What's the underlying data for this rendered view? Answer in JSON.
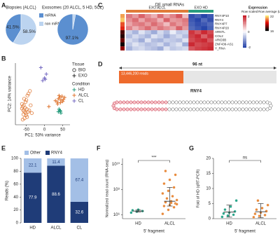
{
  "panel_labels": [
    "A",
    "B",
    "C",
    "D",
    "E",
    "F",
    "G"
  ],
  "coverage": {
    "length_label": "96 nt",
    "reads_label": "13,446,200 reads",
    "name": "RNY4"
  },
  "chart_data": [
    {
      "type": "pie",
      "title": "Biopsies (ALCL)",
      "categories": [
        "miRNA",
        "non miRNA"
      ],
      "values": [
        41.5,
        58.5
      ],
      "value_labels": [
        "41.5%",
        "58.5%"
      ],
      "colors": [
        "#5b8fd0",
        "#bcd4f0"
      ]
    },
    {
      "type": "pie",
      "title": "Exosomes (20 ALCL, 5 HD, 5CL)",
      "values": [
        97.1,
        2.9
      ],
      "value_labels": [
        "97.1%",
        null
      ],
      "colors": [
        "#5b8fd0",
        "#bcd4f0"
      ]
    },
    {
      "type": "scatter",
      "xlabel": "PC1: 53% variance",
      "ylabel": "PC2: 14% variance",
      "xlim": [
        -80,
        70
      ],
      "ylim": [
        -40,
        55
      ],
      "xticks": [
        -50,
        0,
        50
      ],
      "tissue_legend": {
        "title": "Tissue",
        "items": [
          {
            "name": "BIO",
            "marker": "circle"
          },
          {
            "name": "EXO",
            "marker": "plus"
          }
        ]
      },
      "condition_legend": {
        "title": "Condition",
        "items": [
          {
            "name": "HD",
            "color": "#2a9d7f"
          },
          {
            "name": "ALCL",
            "color": "#e07b39"
          },
          {
            "name": "CL",
            "color": "#7a6fc4"
          }
        ]
      },
      "groups": [
        {
          "tissue": 0,
          "condition": 1,
          "x": [
            -62,
            -58,
            -55,
            -52,
            -50,
            -48,
            -60,
            -57,
            -53,
            -49,
            -45,
            -55,
            -60,
            -58,
            -52,
            -47,
            -44,
            -40,
            -62,
            -56,
            -50,
            -42,
            -38,
            -35
          ],
          "y": [
            -15,
            -18,
            -20,
            -22,
            -25,
            -28,
            -12,
            -10,
            -14,
            -16,
            -20,
            -30,
            -32,
            -24,
            -5,
            5,
            8,
            12,
            -8,
            0,
            -2,
            -18,
            -10,
            -22
          ]
        },
        {
          "tissue": 1,
          "condition": 1,
          "x": [
            30,
            35,
            38,
            42,
            45,
            48,
            50,
            52,
            40,
            44,
            12,
            55,
            36
          ],
          "y": [
            -3,
            -5,
            0,
            2,
            -2,
            4,
            -4,
            -1,
            5,
            -6,
            -12,
            2,
            -8
          ]
        },
        {
          "tissue": 1,
          "condition": 0,
          "x": [
            38,
            42,
            45,
            40,
            44
          ],
          "y": [
            -20,
            -18,
            -22,
            -16,
            -19
          ]
        },
        {
          "tissue": 1,
          "condition": 2,
          "x": [
            -10,
            5,
            0,
            -5,
            2
          ],
          "y": [
            48,
            38,
            32,
            28,
            30
          ]
        }
      ]
    },
    {
      "type": "heatmap",
      "title": "DE small RNAs",
      "legend_title": "Expression",
      "scale_label": "Row scaled",
      "avg_label": "Row average (Log2)",
      "scale_ticks": [
        2,
        0,
        -2
      ],
      "avg_ticks": [
        22,
        16
      ],
      "groups": [
        {
          "name": "EXO ALCL",
          "color": "#e07b39",
          "columns": 10
        },
        {
          "name": "EXO HD",
          "color": "#2a9d7f",
          "columns": 4
        }
      ],
      "rows": [
        "RNY4P10",
        "RNY4",
        "RNY4P7",
        "RNY4P20",
        "ARNTL",
        "COL2",
        "ARID3B",
        "ZNF436-AS1",
        "Y_RNA"
      ],
      "row_average": [
        21,
        21.5,
        20,
        19.5,
        17,
        16.5,
        17.5,
        16.2,
        18
      ],
      "values": [
        [
          1.2,
          0.9,
          1.4,
          1.0,
          0.7,
          1.3,
          0.8,
          1.1,
          1.5,
          0.6,
          -1.9,
          -1.7,
          -2.0,
          -1.8
        ],
        [
          1.0,
          1.3,
          0.8,
          1.2,
          1.1,
          0.7,
          1.4,
          0.9,
          1.0,
          1.2,
          -1.8,
          -2.0,
          -1.6,
          -1.9
        ],
        [
          0.8,
          1.1,
          1.2,
          0.9,
          1.3,
          1.0,
          0.6,
          1.2,
          0.9,
          1.1,
          -1.7,
          -1.9,
          -1.8,
          -1.6
        ],
        [
          1.1,
          0.7,
          1.0,
          1.3,
          0.9,
          1.2,
          1.0,
          0.8,
          1.4,
          0.9,
          -1.6,
          -1.8,
          -2.0,
          -1.7
        ],
        [
          -0.5,
          -0.8,
          -0.3,
          -0.6,
          -0.9,
          -0.4,
          -0.7,
          -0.2,
          -0.6,
          -0.5,
          1.8,
          1.5,
          1.9,
          1.6
        ],
        [
          -0.7,
          -0.4,
          -0.6,
          -0.8,
          -0.3,
          -0.5,
          -0.9,
          -0.6,
          -0.4,
          -0.7,
          1.7,
          1.9,
          1.4,
          1.8
        ],
        [
          -0.4,
          -0.6,
          -0.9,
          -0.3,
          -0.7,
          -0.8,
          -0.5,
          -0.6,
          -0.7,
          -0.3,
          1.6,
          1.8,
          1.9,
          1.5
        ],
        [
          -0.6,
          -0.3,
          -0.5,
          -0.7,
          -0.6,
          -0.4,
          -0.8,
          -0.5,
          -0.3,
          -0.9,
          1.9,
          1.6,
          1.7,
          1.8
        ],
        [
          -0.8,
          -0.5,
          -0.4,
          -0.6,
          -0.7,
          -0.9,
          -0.3,
          -0.6,
          -0.5,
          -0.4,
          1.5,
          1.7,
          1.8,
          1.9
        ]
      ]
    },
    {
      "type": "bar",
      "stacked": true,
      "ylabel": "Reads (%)",
      "categories": [
        "HD",
        "ALCL",
        "CL"
      ],
      "ylim": [
        0,
        100
      ],
      "yticks": [
        0,
        20,
        40,
        60,
        80,
        100
      ],
      "series": [
        {
          "name": "RNY4",
          "color": "#1f3c78",
          "values": [
            77.9,
            88.6,
            32.6
          ]
        },
        {
          "name": "Other",
          "color": "#a3bfe6",
          "values": [
            22.1,
            11.4,
            67.4
          ]
        }
      ]
    },
    {
      "type": "strip",
      "ylabel": "Normalized read count (RNA-seq)",
      "xlabel": "5' fragment",
      "log": true,
      "ylim": [
        500000,
        30000000000
      ],
      "yticks": [
        {
          "value": 1000000,
          "label": "10⁶"
        },
        {
          "value": 100000000,
          "label": "10⁸"
        },
        {
          "value": 10000000000,
          "label": "10¹⁰"
        }
      ],
      "categories": [
        "HD",
        "ALCL"
      ],
      "annotation": "***",
      "series": [
        {
          "color": "#2aa58a",
          "values": [
            1500000,
            1800000,
            2000000,
            2300000,
            2600000
          ],
          "center": 2000000,
          "low": 1700000,
          "high": 2400000
        },
        {
          "color": "#e8893a",
          "values": [
            1200000,
            2500000,
            4000000,
            5000000,
            6000000,
            8000000,
            10000000,
            12000000,
            15000000,
            20000000,
            30000000,
            50000000,
            80000000,
            150000000,
            300000000,
            600000000,
            1500000000,
            3000000000,
            9000000,
            7000000
          ],
          "center": 12000000,
          "low": 5000000,
          "high": 150000000
        }
      ]
    },
    {
      "type": "strip",
      "ylabel": "Fold of HD (qRT-PCR)",
      "xlabel": "5' fragment",
      "ylim": [
        0,
        20
      ],
      "yticks": [
        0,
        5,
        10,
        15,
        20
      ],
      "categories": [
        "HD",
        "ALCL"
      ],
      "annotation": "ns",
      "series": [
        {
          "color": "#2aa58a",
          "values": [
            0.6,
            1,
            1.3,
            1.7,
            2,
            2.4,
            3,
            4,
            6
          ],
          "center": 2.2,
          "low": 0.5,
          "high": 4.5
        },
        {
          "color": "#e8893a",
          "values": [
            0.5,
            0.9,
            1.2,
            1.6,
            2,
            2.5,
            3,
            3.5,
            4.5,
            6
          ],
          "center": 2.3,
          "low": 0.3,
          "high": 5
        }
      ]
    }
  ]
}
